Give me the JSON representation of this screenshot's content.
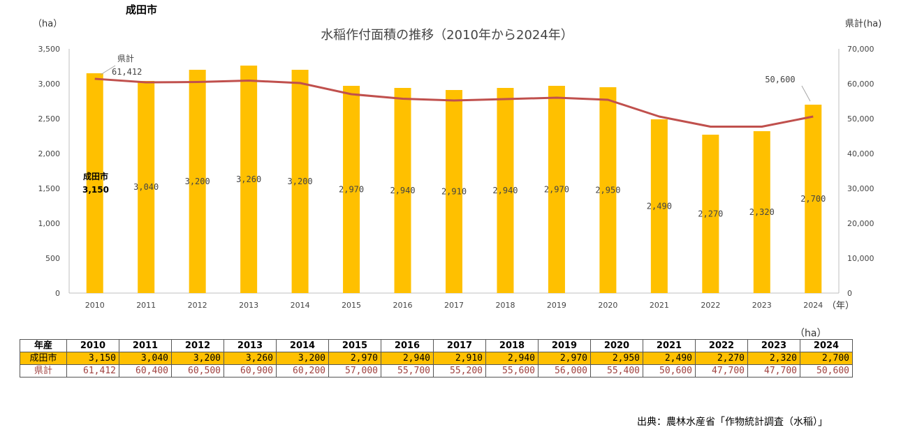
{
  "area_title": "成田市",
  "chart_data": {
    "type": "bar+line",
    "title": "水稲作付面積の推移（2010年から2024年）",
    "left_unit": "（ha）",
    "right_unit": "県計(ha)",
    "x_unit": "（年）",
    "categories": [
      "2010",
      "2011",
      "2012",
      "2013",
      "2014",
      "2015",
      "2016",
      "2017",
      "2018",
      "2019",
      "2020",
      "2021",
      "2022",
      "2023",
      "2024"
    ],
    "left_ylim": [
      0,
      3500
    ],
    "left_ticks": [
      "0",
      "500",
      "1,000",
      "1,500",
      "2,000",
      "2,500",
      "3,000",
      "3,500"
    ],
    "right_ylim": [
      0,
      70000
    ],
    "right_ticks": [
      "0",
      "10,000",
      "20,000",
      "30,000",
      "40,000",
      "50,000",
      "60,000",
      "70,000"
    ],
    "series": [
      {
        "name": "成田市",
        "type": "bar",
        "color": "#ffc000",
        "values": [
          3150,
          3040,
          3200,
          3260,
          3200,
          2970,
          2940,
          2910,
          2940,
          2970,
          2950,
          2490,
          2270,
          2320,
          2700
        ],
        "labels": [
          "3,150",
          "3,040",
          "3,200",
          "3,260",
          "3,200",
          "2,970",
          "2,940",
          "2,910",
          "2,940",
          "2,970",
          "2,950",
          "2,490",
          "2,270",
          "2,320",
          "2,700"
        ]
      },
      {
        "name": "県計",
        "type": "line",
        "color": "#c0504d",
        "values": [
          61412,
          60400,
          60500,
          60900,
          60200,
          57000,
          55700,
          55200,
          55600,
          56000,
          55400,
          50600,
          47700,
          47700,
          50600
        ]
      }
    ],
    "annotations": {
      "pref_first_name": "県計",
      "pref_first_value": "61,412",
      "pref_last_value": "50,600",
      "city_first_name": "成田市",
      "city_first_value": "3,150"
    }
  },
  "table": {
    "unit": "（ha）",
    "header_label": "年産",
    "years": [
      "2010",
      "2011",
      "2012",
      "2013",
      "2014",
      "2015",
      "2016",
      "2017",
      "2018",
      "2019",
      "2020",
      "2021",
      "2022",
      "2023",
      "2024"
    ],
    "rows": [
      {
        "label": "成田市",
        "values": [
          "3,150",
          "3,040",
          "3,200",
          "3,260",
          "3,200",
          "2,970",
          "2,940",
          "2,910",
          "2,940",
          "2,970",
          "2,950",
          "2,490",
          "2,270",
          "2,320",
          "2,700"
        ]
      },
      {
        "label": "県計",
        "values": [
          "61,412",
          "60,400",
          "60,500",
          "60,900",
          "60,200",
          "57,000",
          "55,700",
          "55,200",
          "55,600",
          "56,000",
          "55,400",
          "50,600",
          "47,700",
          "47,700",
          "50,600"
        ]
      }
    ]
  },
  "source": "出典：農林水産省「作物統計調査（水稲）」"
}
